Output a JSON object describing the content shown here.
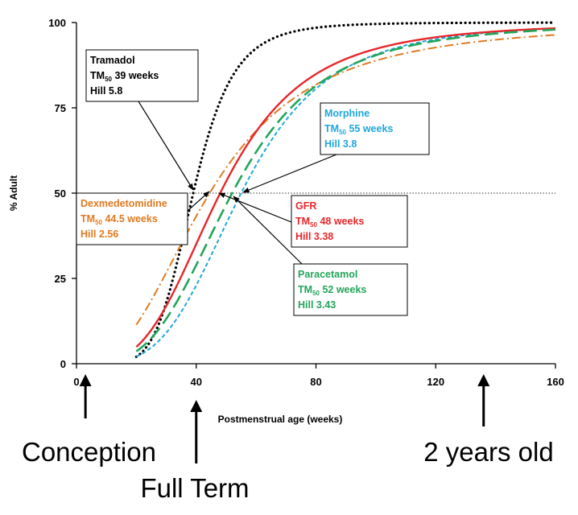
{
  "chart_data": {
    "type": "line",
    "xlabel": "Postmenstrual age (weeks)",
    "ylabel": "% Adult",
    "xlim": [
      0,
      160
    ],
    "ylim": [
      0,
      100
    ],
    "x_ticks": [
      0,
      40,
      80,
      120,
      160
    ],
    "y_ticks": [
      0,
      25,
      50,
      75,
      100
    ],
    "reference_line_y": 50,
    "x_start": 20,
    "series": [
      {
        "name": "Tramadol",
        "tm50": 39,
        "tm50_text": "39 weeks",
        "hill": 5.8,
        "hill_text": "5.8",
        "color": "#000000",
        "style": "dotted"
      },
      {
        "name": "Morphine",
        "tm50": 55,
        "tm50_text": "55 weeks",
        "hill": 3.8,
        "hill_text": "3.8",
        "color": "#1FA7DC",
        "style": "short-dash"
      },
      {
        "name": "Dexmedetomidine",
        "tm50": 44.5,
        "tm50_text": "44.5 weeks",
        "hill": 2.56,
        "hill_text": "2.56",
        "color": "#E07A20",
        "style": "dash-dot"
      },
      {
        "name": "GFR",
        "tm50": 48,
        "tm50_text": "48 weeks",
        "hill": 3.38,
        "hill_text": "3.38",
        "color": "#E8262A",
        "style": "solid"
      },
      {
        "name": "Paracetamol",
        "tm50": 52,
        "tm50_text": "52 weeks",
        "hill": 3.43,
        "hill_text": "3.43",
        "color": "#22A55A",
        "style": "long-dash"
      }
    ],
    "tm_prefix": "TM",
    "tm_subscript": "50",
    "hill_prefix": "Hill",
    "milestones": [
      {
        "label": "Conception",
        "x": 3
      },
      {
        "label": "Full Term",
        "x": 40
      },
      {
        "label": "2 years old",
        "x": 136
      }
    ]
  }
}
